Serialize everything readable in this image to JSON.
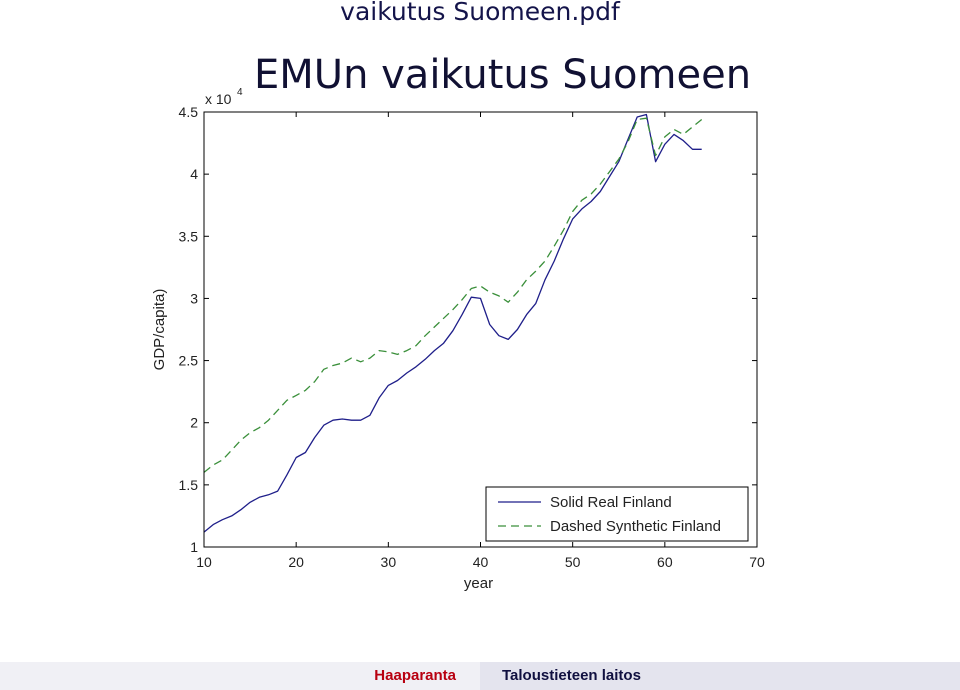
{
  "document": {
    "title": "vaikutus Suomeen.pdf"
  },
  "slide": {
    "title": "EMUn vaikutus Suomeen"
  },
  "footer": {
    "left": "Haaparanta",
    "right": "Taloustieteen laitos"
  },
  "chart_data": {
    "type": "line",
    "title": "",
    "xlabel": "year",
    "ylabel": "GDP/capita)",
    "y_multiplier_label": "x 10",
    "y_multiplier_exp": "4",
    "xlim": [
      10,
      70
    ],
    "ylim": [
      1,
      4.5
    ],
    "xticks": [
      10,
      20,
      30,
      40,
      50,
      60,
      70
    ],
    "yticks": [
      1,
      1.5,
      2,
      2.5,
      3,
      3.5,
      4,
      4.5
    ],
    "grid": false,
    "legend_position": "bottom-right",
    "x": [
      10,
      11,
      12,
      13,
      14,
      15,
      16,
      17,
      18,
      19,
      20,
      21,
      22,
      23,
      24,
      25,
      26,
      27,
      28,
      29,
      30,
      31,
      32,
      33,
      34,
      35,
      36,
      37,
      38,
      39,
      40,
      41,
      42,
      43,
      44,
      45,
      46,
      47,
      48,
      49,
      50,
      51,
      52,
      53,
      54,
      55,
      56,
      57,
      58,
      59,
      60,
      61,
      62,
      63,
      64
    ],
    "series": [
      {
        "name": "Solid Real Finland",
        "style": "solid",
        "color": "#1f1f8a",
        "values": [
          1.12,
          1.18,
          1.22,
          1.25,
          1.3,
          1.36,
          1.4,
          1.42,
          1.45,
          1.58,
          1.72,
          1.76,
          1.88,
          1.98,
          2.02,
          2.03,
          2.02,
          2.02,
          2.06,
          2.2,
          2.3,
          2.34,
          2.4,
          2.45,
          2.51,
          2.58,
          2.64,
          2.74,
          2.87,
          3.01,
          3.0,
          2.79,
          2.7,
          2.67,
          2.75,
          2.87,
          2.96,
          3.15,
          3.3,
          3.48,
          3.64,
          3.72,
          3.78,
          3.86,
          3.98,
          4.1,
          4.28,
          4.46,
          4.48,
          4.1,
          4.24,
          4.32,
          4.27,
          4.2,
          4.2
        ]
      },
      {
        "name": "Dashed Synthetic Finland",
        "style": "dashed",
        "color": "#3a8f3a",
        "values": [
          1.6,
          1.66,
          1.7,
          1.78,
          1.86,
          1.92,
          1.96,
          2.02,
          2.1,
          2.18,
          2.22,
          2.26,
          2.33,
          2.43,
          2.46,
          2.48,
          2.52,
          2.49,
          2.52,
          2.58,
          2.57,
          2.55,
          2.58,
          2.62,
          2.7,
          2.77,
          2.84,
          2.91,
          2.99,
          3.08,
          3.1,
          3.05,
          3.02,
          2.97,
          3.05,
          3.15,
          3.22,
          3.3,
          3.42,
          3.55,
          3.7,
          3.79,
          3.84,
          3.92,
          4.02,
          4.12,
          4.26,
          4.44,
          4.45,
          4.15,
          4.3,
          4.36,
          4.32,
          4.38,
          4.44
        ]
      }
    ]
  }
}
